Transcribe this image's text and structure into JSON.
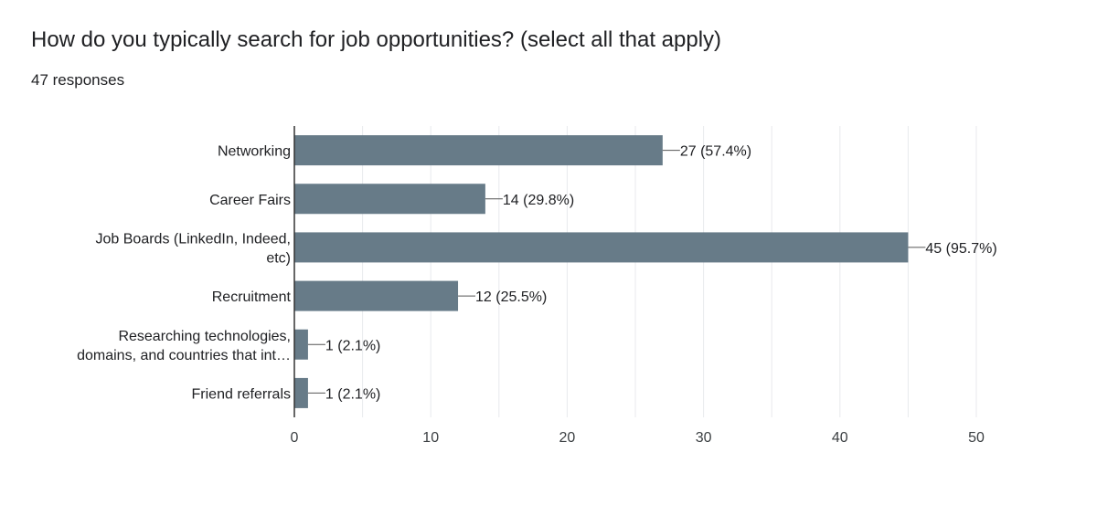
{
  "header": {
    "title": "How do you typically search for job opportunities? (select all that apply)",
    "responses": "47 responses"
  },
  "colors": {
    "bar": "#677b88",
    "grid": "#e8eaed",
    "axis": "#333333",
    "text": "#202124"
  },
  "chart_data": {
    "type": "bar",
    "orientation": "horizontal",
    "categories": [
      [
        "Networking"
      ],
      [
        "Career Fairs"
      ],
      [
        "Job Boards (LinkedIn, Indeed,",
        "etc)"
      ],
      [
        "Recruitment"
      ],
      [
        "Researching technologies,",
        "domains, and countries that int…"
      ],
      [
        "Friend referrals"
      ]
    ],
    "values": [
      27,
      14,
      45,
      12,
      1,
      1
    ],
    "data_labels": [
      "27 (57.4%)",
      "14 (29.8%)",
      "45 (95.7%)",
      "12 (25.5%)",
      "1 (2.1%)",
      "1 (2.1%)"
    ],
    "xlim": [
      0,
      50
    ],
    "xticks": [
      0,
      10,
      20,
      30,
      40,
      50
    ],
    "grid": true
  }
}
